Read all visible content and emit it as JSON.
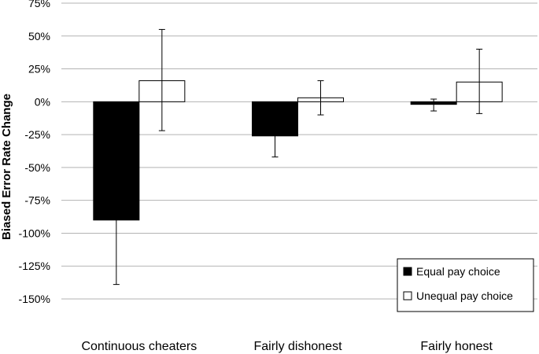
{
  "chart_data": {
    "type": "bar",
    "title": "",
    "xlabel": "",
    "ylabel": "Biased Error Rate Change",
    "ylim": [
      -150,
      75
    ],
    "yticks": [
      75,
      50,
      25,
      0,
      -25,
      -50,
      -75,
      -100,
      -125,
      -150
    ],
    "ytick_labels": [
      "75%",
      "50%",
      "25%",
      "0%",
      "-25%",
      "-50%",
      "-75%",
      "-100%",
      "-125%",
      "-150%"
    ],
    "grid": true,
    "legend_position": "bottom-right",
    "categories": [
      "Continuous cheaters",
      "Fairly dishonest",
      "Fairly honest"
    ],
    "series": [
      {
        "name": "Equal pay choice",
        "color": "#000000",
        "values": [
          -90,
          -26,
          -2
        ],
        "error_low": [
          -139,
          -42,
          -7
        ],
        "error_high": [
          -41,
          -10,
          2
        ]
      },
      {
        "name": "Unequal pay choice",
        "color": "#ffffff",
        "values": [
          16,
          3,
          15
        ],
        "error_low": [
          -22,
          -10,
          -9
        ],
        "error_high": [
          55,
          16,
          40
        ]
      }
    ]
  }
}
